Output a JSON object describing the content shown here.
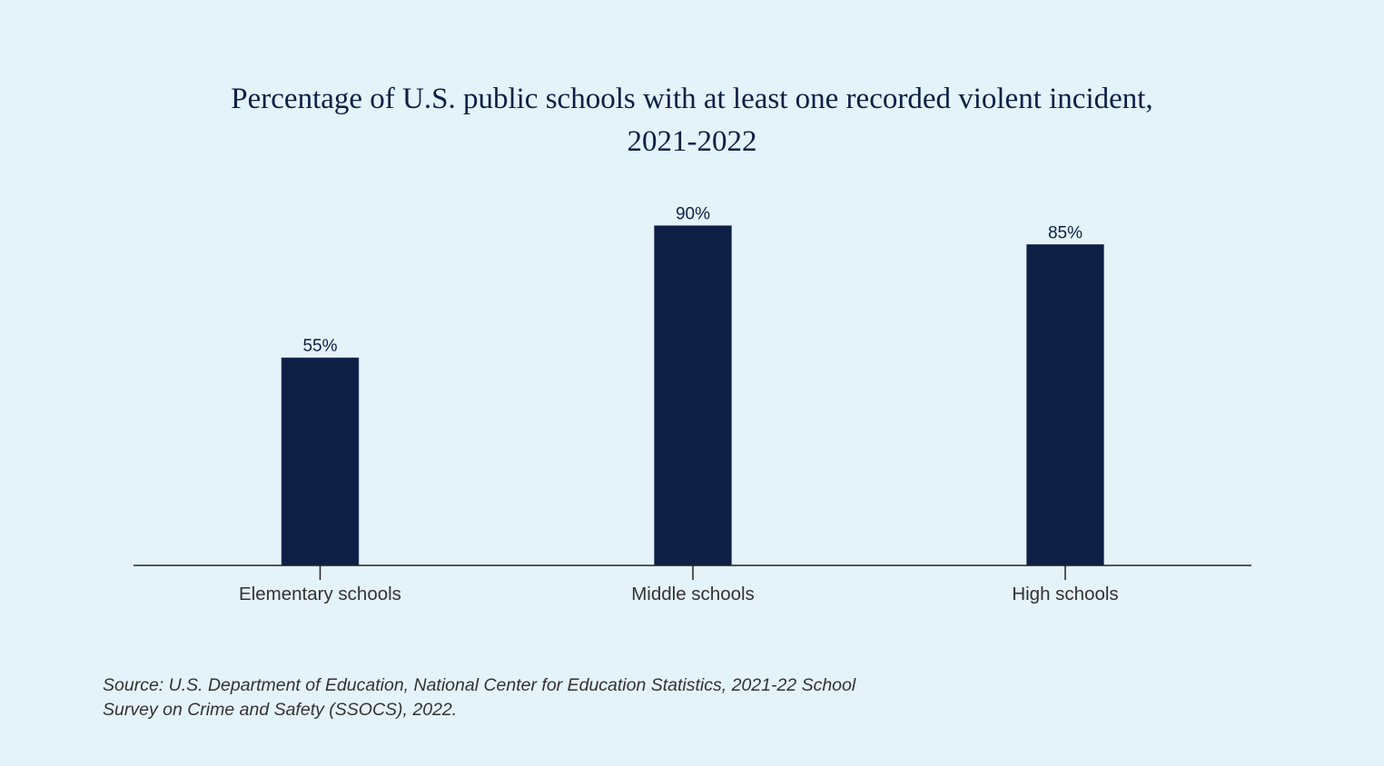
{
  "chart_data": {
    "type": "bar",
    "title_line1": "Percentage of U.S. public schools with at least one recorded violent incident,",
    "title_line2": "2021-2022",
    "categories": [
      "Elementary schools",
      "Middle schools",
      "High schools"
    ],
    "values": [
      55,
      90,
      85
    ],
    "data_labels": [
      "55%",
      "90%",
      "85%"
    ],
    "xlabel": "",
    "ylabel": "",
    "ylim": [
      0,
      100
    ],
    "grid": false,
    "y_axis_shown": false,
    "bar_color": "#0d1f45",
    "background_color": "#e4f2fa"
  },
  "source": {
    "line1": "Source: U.S. Department of Education, National Center for Education Statistics, 2021-22 School",
    "line2": "Survey on Crime and Safety (SSOCS), 2022."
  }
}
